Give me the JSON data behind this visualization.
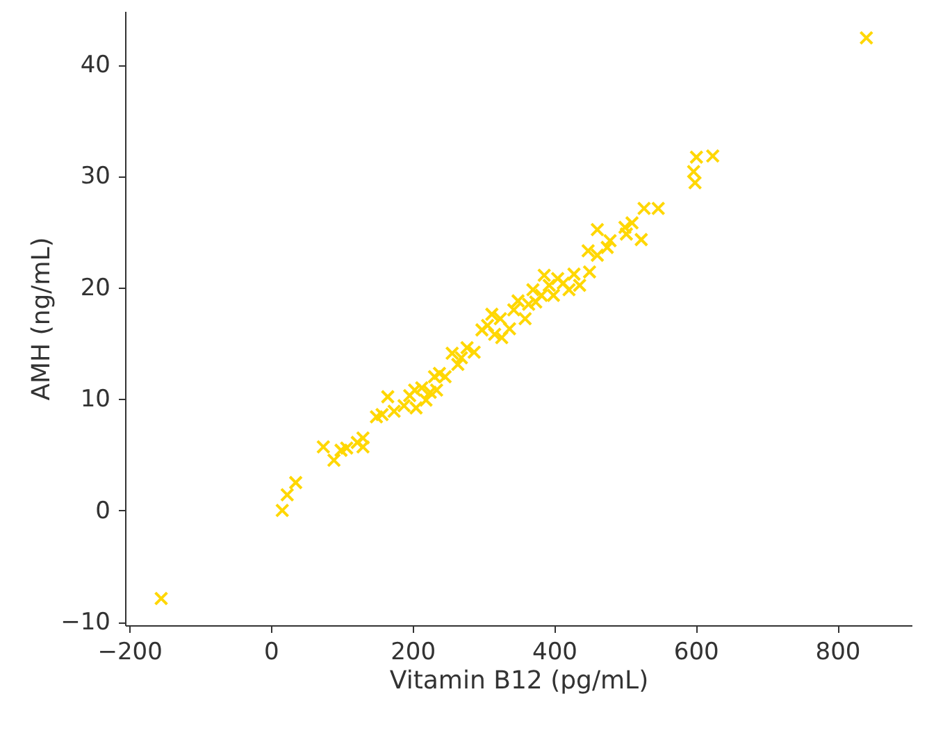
{
  "chart_data": {
    "type": "scatter",
    "xlabel": "Vitamin B12 (pg/mL)",
    "ylabel": "AMH (ng/mL)",
    "x": [
      -155,
      16,
      23,
      35,
      74,
      89,
      99,
      107,
      122,
      130,
      130,
      149,
      157,
      165,
      174,
      188,
      196,
      203,
      205,
      213,
      219,
      225,
      231,
      234,
      238,
      246,
      256,
      264,
      269,
      277,
      287,
      298,
      306,
      312,
      316,
      324,
      326,
      337,
      343,
      349,
      359,
      364,
      370,
      374,
      382,
      386,
      393,
      399,
      405,
      413,
      421,
      428,
      436,
      450,
      448,
      461,
      475,
      502,
      523,
      510,
      527,
      547,
      500,
      461,
      479,
      601,
      597,
      599,
      624,
      841
    ],
    "series": [
      {
        "color": "#ffd700",
        "values": [
          -7.9,
          0,
          1.4,
          2.5,
          5.7,
          4.5,
          5.4,
          5.6,
          6.1,
          6.5,
          5.7,
          8.4,
          8.6,
          10.2,
          8.9,
          9.4,
          10.3,
          10.8,
          9.2,
          11.0,
          9.9,
          10.6,
          12.0,
          10.8,
          12.3,
          12.0,
          14.1,
          13.1,
          13.7,
          14.6,
          14.2,
          16.2,
          16.6,
          17.6,
          15.8,
          17.2,
          15.5,
          16.3,
          18.0,
          18.8,
          17.2,
          18.5,
          19.8,
          18.7,
          19.3,
          21.1,
          20.2,
          19.3,
          20.8,
          20.4,
          19.8,
          21.2,
          20.2,
          21.4,
          23.3,
          22.9,
          23.6,
          24.8,
          24.3,
          25.8,
          27.1,
          27.1,
          25.4,
          25.2,
          24.2,
          31.7,
          30.4,
          29.4,
          31.8,
          42.4
        ]
      }
    ],
    "xlim": [
      -206,
      905
    ],
    "ylim": [
      -10.3,
      44.8
    ],
    "xticks": [
      {
        "value": -200,
        "label": "−200"
      },
      0,
      200,
      400,
      600,
      800
    ],
    "yticks": [
      {
        "value": -10,
        "label": "−10"
      },
      0,
      10,
      20,
      30,
      40
    ],
    "marker": "cross",
    "grid": false,
    "legend": false
  }
}
